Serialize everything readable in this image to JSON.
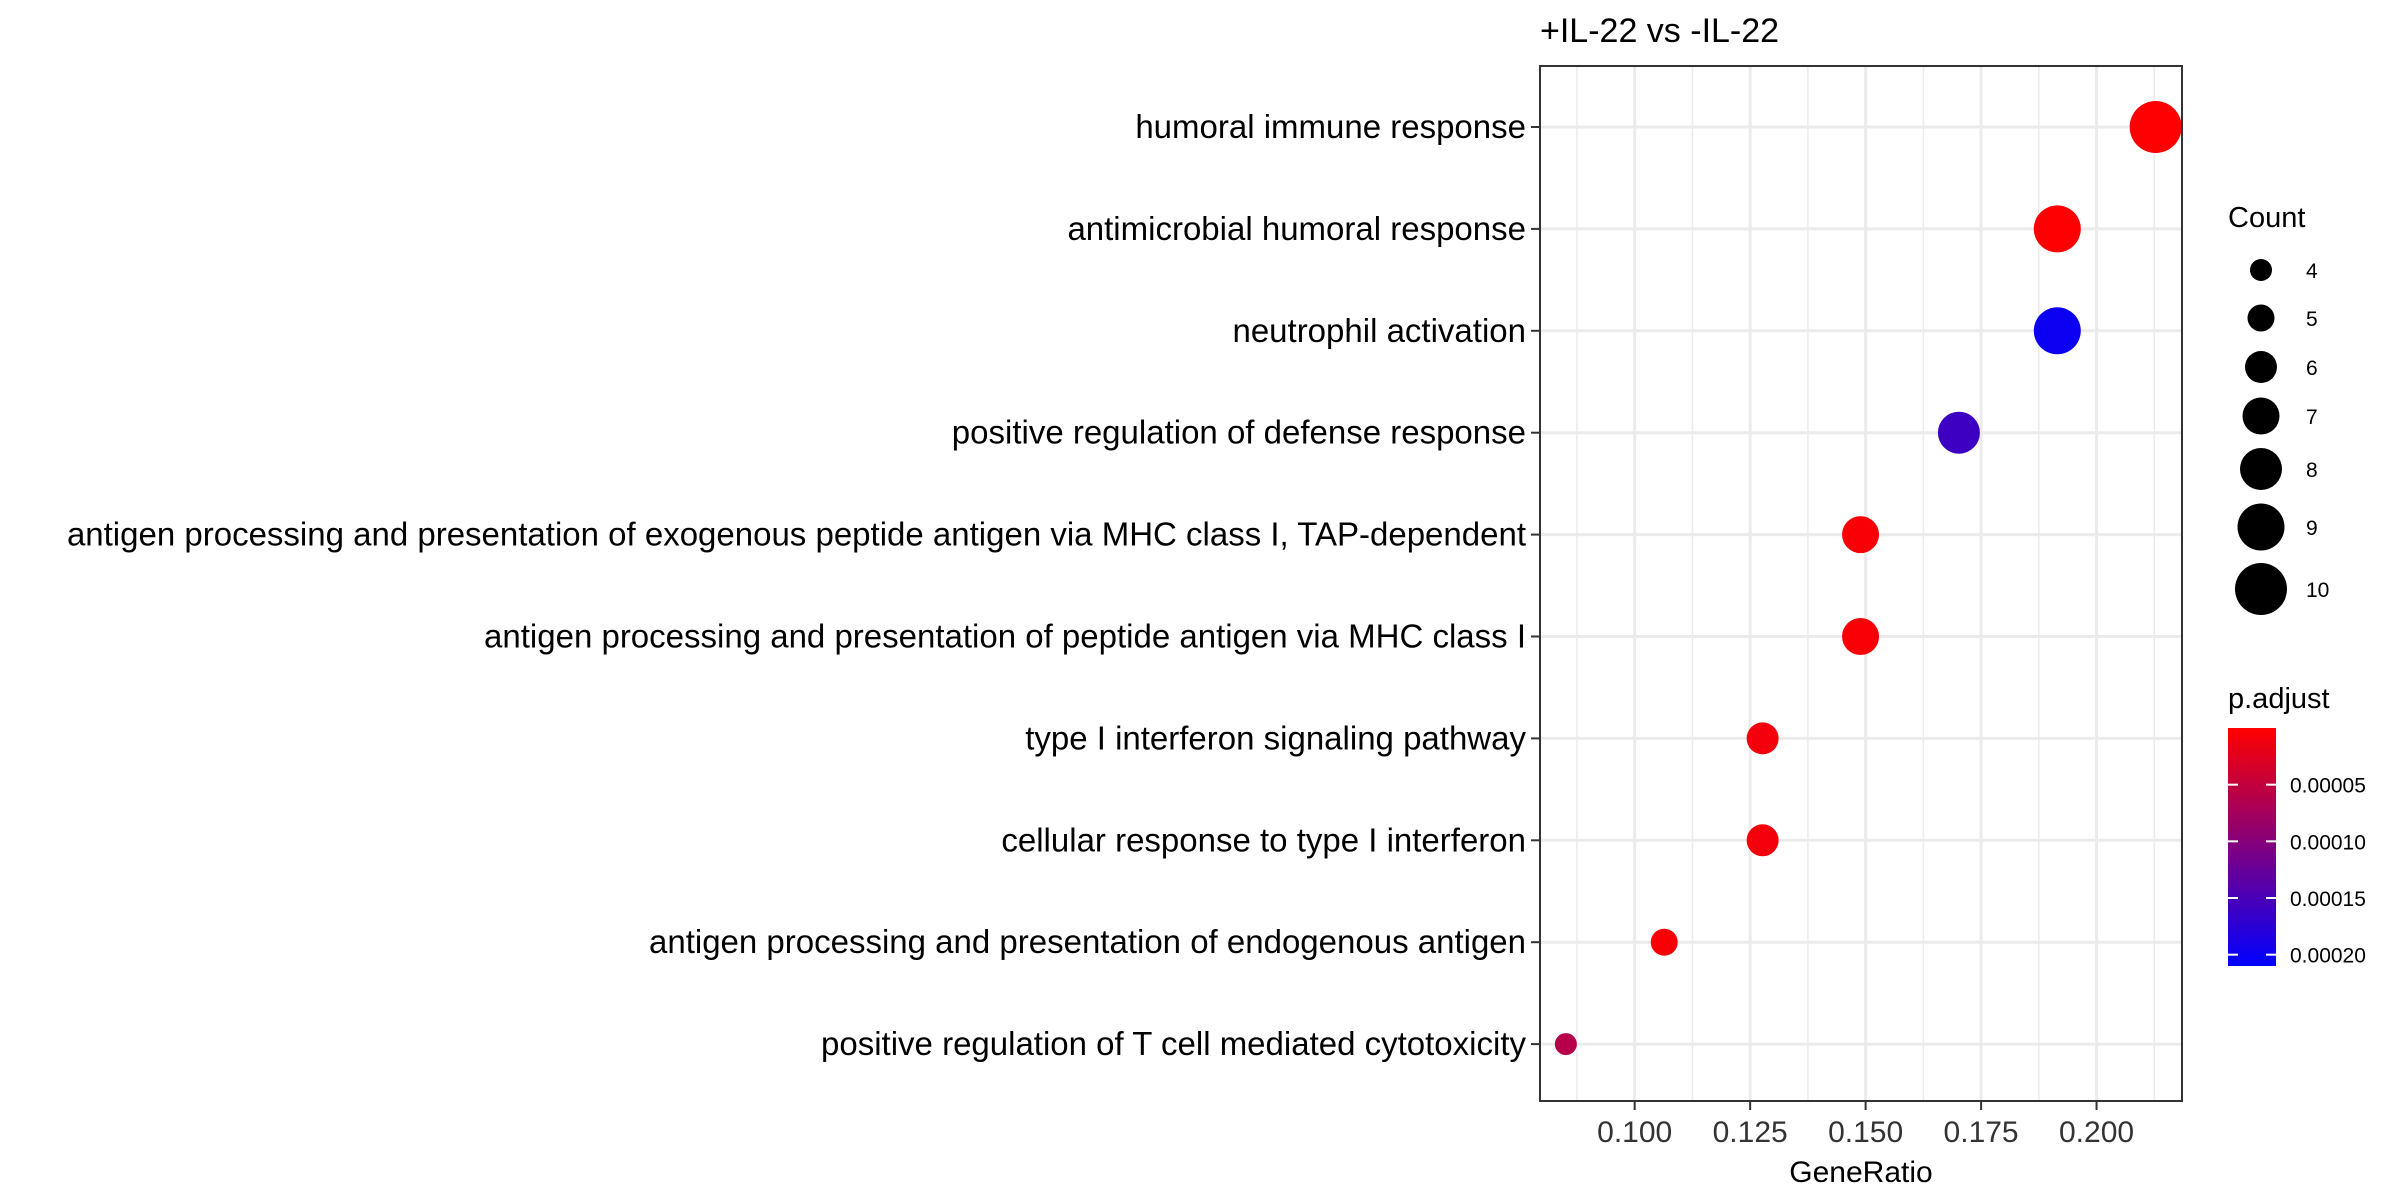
{
  "chart_data": {
    "type": "scatter",
    "title": "+IL-22 vs -IL-22",
    "xlabel": "GeneRatio",
    "ylabel": "",
    "xlim": [
      0.0795,
      0.2185
    ],
    "xticks": [
      "0.100",
      "0.125",
      "0.150",
      "0.175",
      "0.200"
    ],
    "xtick_values": [
      0.1,
      0.125,
      0.15,
      0.175,
      0.2
    ],
    "grid": true,
    "points": [
      {
        "term": "humoral immune response",
        "gene_ratio": 0.2128,
        "count": 10,
        "p_adjust": 1e-06
      },
      {
        "term": "antimicrobial humoral response",
        "gene_ratio": 0.1915,
        "count": 9,
        "p_adjust": 1e-06
      },
      {
        "term": "neutrophil activation",
        "gene_ratio": 0.1915,
        "count": 9,
        "p_adjust": 0.0002
      },
      {
        "term": "positive regulation of defense response",
        "gene_ratio": 0.1702,
        "count": 8,
        "p_adjust": 0.00016
      },
      {
        "term": "antigen processing and presentation of exogenous peptide antigen via MHC class I, TAP-dependent",
        "gene_ratio": 0.1489,
        "count": 7,
        "p_adjust": 5e-06
      },
      {
        "term": "antigen processing and presentation of peptide antigen via MHC class I",
        "gene_ratio": 0.1489,
        "count": 7,
        "p_adjust": 5e-06
      },
      {
        "term": "type I interferon signaling pathway",
        "gene_ratio": 0.1277,
        "count": 6,
        "p_adjust": 1e-05
      },
      {
        "term": "cellular response to type I interferon",
        "gene_ratio": 0.1277,
        "count": 6,
        "p_adjust": 1e-05
      },
      {
        "term": "antigen processing and presentation of endogenous antigen",
        "gene_ratio": 0.1064,
        "count": 5,
        "p_adjust": 5e-06
      },
      {
        "term": "positive regulation of T cell mediated cytotoxicity",
        "gene_ratio": 0.0851,
        "count": 4,
        "p_adjust": 6e-05
      }
    ],
    "size_legend": {
      "title": "Count",
      "values": [
        4,
        5,
        6,
        7,
        8,
        9,
        10
      ],
      "labels": [
        "4",
        "5",
        "6",
        "7",
        "8",
        "9",
        "10"
      ]
    },
    "color_legend": {
      "title": "p.adjust",
      "range": [
        0.0,
        0.00021
      ],
      "ticks": [
        5e-05,
        0.0001,
        0.00015,
        0.0002
      ],
      "tick_labels": [
        "0.00005",
        "0.00010",
        "0.00015",
        "0.00020"
      ],
      "low_color": "#ff0000",
      "high_color": "#0000ff"
    }
  }
}
